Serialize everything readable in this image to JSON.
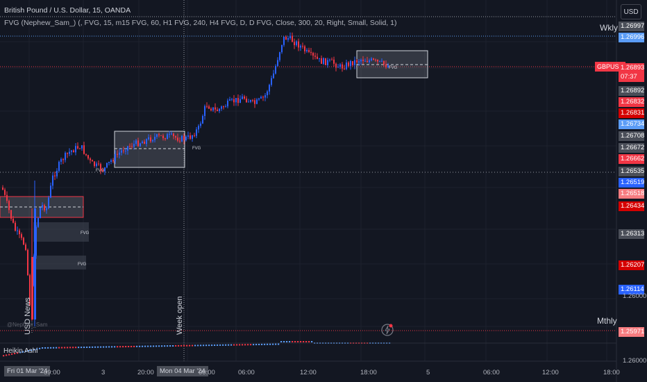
{
  "header": {
    "symbol_line": "British Pound / U.S. Dollar, 15, OANDA",
    "indicator_line": "FVG (Nephew_Sam_) (, FVG, 15, m15 FVG, 60, H1 FVG, 240, H4 FVG, D, D FVG, Close, 300, 20, Right, Small, Solid, 1)"
  },
  "currency_button": "USD",
  "symbol_tag": "GBPUSD",
  "countdown": "07:37",
  "price_labels": [
    {
      "text": "1.26997",
      "bg": "#4a4e58"
    },
    {
      "text": "1.26996",
      "bg": "#5b9cf6"
    },
    {
      "text": "1.26893",
      "bg": "#f23645"
    },
    {
      "text": "1.26892",
      "bg": "#4a4e58"
    },
    {
      "text": "1.26832",
      "bg": "#f23645"
    },
    {
      "text": "1.26831",
      "bg": "#d50000"
    },
    {
      "text": "1.26734",
      "bg": "#5b9cf6"
    },
    {
      "text": "1.26708",
      "bg": "#4a4e58"
    },
    {
      "text": "1.26672",
      "bg": "#4a4e58"
    },
    {
      "text": "1.26662",
      "bg": "#f23645"
    },
    {
      "text": "1.26535",
      "bg": "#4a4e58"
    },
    {
      "text": "1.26519",
      "bg": "#2962ff"
    },
    {
      "text": "1.26518",
      "bg": "#f77c80"
    },
    {
      "text": "1.26434",
      "bg": "#d50000"
    },
    {
      "text": "1.26313",
      "bg": "#4a4e58"
    },
    {
      "text": "1.26207",
      "bg": "#d50000"
    },
    {
      "text": "1.26114",
      "bg": "#2962ff"
    },
    {
      "text": "1.25971",
      "bg": "#f77c80"
    }
  ],
  "plain_ticks": [
    "1.26000",
    "1.26000"
  ],
  "levels": {
    "weekly": "Wkly",
    "monthly": "Mthly"
  },
  "x_axis": [
    "Fri 01 Mar '24",
    "09:00",
    "3",
    "20:00",
    "Mon 04 Mar '24",
    "00:00",
    "06:00",
    "12:00",
    "18:00",
    "5",
    "06:00",
    "12:00",
    "18:00"
  ],
  "annotations": {
    "usd_news": "USD News",
    "week_open": "Week open"
  },
  "fvg_label": "FVG",
  "oscillator_label": "Heikin Ashi",
  "watermark": "@Nephew_Sam",
  "colors": {
    "bull": "#2962ff",
    "bear": "#f23645",
    "background": "#131722"
  }
}
